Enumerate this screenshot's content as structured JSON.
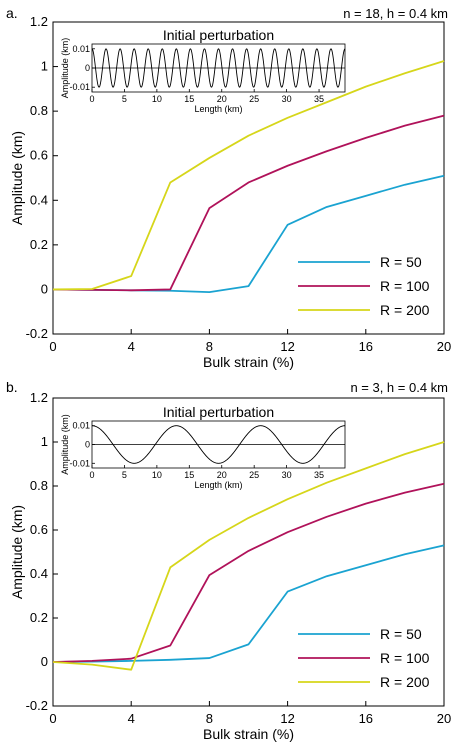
{
  "panels": [
    {
      "label": "a.",
      "params": "n = 18, h = 0.4 km",
      "chart_data": {
        "type": "line",
        "title": "",
        "xlabel": "Bulk strain (%)",
        "ylabel": "Amplitude (km)",
        "xlim": [
          0,
          20
        ],
        "ylim": [
          -0.2,
          1.2
        ],
        "xticks": [
          0,
          4,
          8,
          12,
          16,
          20
        ],
        "yticks": [
          -0.2,
          0,
          0.2,
          0.4,
          0.6,
          0.8,
          1,
          1.2
        ],
        "xtick_labels": [
          "0",
          "4",
          "8",
          "12",
          "16",
          "20"
        ],
        "ytick_labels": [
          "-0.2",
          "0",
          "0.2",
          "0.4",
          "0.6",
          "0.8",
          "1",
          "1.2"
        ],
        "grid": false,
        "legend": "bottom-right",
        "series": [
          {
            "name": "R = 50",
            "color": "#1aa3d1",
            "x": [
              0,
              2,
              4,
              6,
              8,
              10,
              12,
              14,
              16,
              18,
              20
            ],
            "y": [
              0,
              -0.002,
              -0.004,
              -0.006,
              -0.012,
              0.015,
              0.29,
              0.37,
              0.42,
              0.47,
              0.51
            ]
          },
          {
            "name": "R = 100",
            "color": "#b0125a",
            "x": [
              0,
              2,
              4,
              6,
              8,
              10,
              12,
              14,
              16,
              18,
              20
            ],
            "y": [
              0,
              -0.002,
              -0.004,
              0.0,
              0.365,
              0.48,
              0.555,
              0.62,
              0.68,
              0.735,
              0.78
            ]
          },
          {
            "name": "R = 200",
            "color": "#d6d61a",
            "x": [
              0,
              2,
              4,
              6,
              8,
              10,
              12,
              14,
              16,
              18,
              20
            ],
            "y": [
              0,
              0.002,
              0.06,
              0.48,
              0.59,
              0.69,
              0.77,
              0.84,
              0.91,
              0.97,
              1.025
            ]
          }
        ]
      },
      "inset": {
        "title": "Initial perturbation",
        "xlabel": "Length (km)",
        "ylabel": "Amplitude (km)",
        "xlim": [
          0,
          39
        ],
        "ylim": [
          -0.0125,
          0.0125
        ],
        "xticks": [
          0,
          5,
          10,
          15,
          20,
          25,
          30,
          35
        ],
        "xtick_labels": [
          "0",
          "5",
          "10",
          "15",
          "20",
          "25",
          "30",
          "35"
        ],
        "yticks": [
          0.01,
          0,
          -0.01
        ],
        "ytick_labels": [
          "0.01",
          "0",
          "-0.01"
        ],
        "wave": {
          "amplitude": 0.01,
          "cycles": 18
        }
      }
    },
    {
      "label": "b.",
      "params": "n = 3, h = 0.4 km",
      "chart_data": {
        "type": "line",
        "title": "",
        "xlabel": "Bulk strain (%)",
        "ylabel": "Amplitude (km)",
        "xlim": [
          0,
          20
        ],
        "ylim": [
          -0.2,
          1.2
        ],
        "xticks": [
          0,
          4,
          8,
          12,
          16,
          20
        ],
        "yticks": [
          -0.2,
          0,
          0.2,
          0.4,
          0.6,
          0.8,
          1,
          1.2
        ],
        "xtick_labels": [
          "0",
          "4",
          "8",
          "12",
          "16",
          "20"
        ],
        "ytick_labels": [
          "-0.2",
          "0",
          "0.2",
          "0.4",
          "0.6",
          "0.8",
          "1",
          "1.2"
        ],
        "grid": false,
        "legend": "bottom-right",
        "series": [
          {
            "name": "R = 50",
            "color": "#1aa3d1",
            "x": [
              0,
              2,
              4,
              6,
              8,
              10,
              12,
              14,
              16,
              18,
              20
            ],
            "y": [
              0,
              0.002,
              0.005,
              0.01,
              0.018,
              0.08,
              0.32,
              0.39,
              0.44,
              0.49,
              0.53
            ]
          },
          {
            "name": "R = 100",
            "color": "#b0125a",
            "x": [
              0,
              2,
              4,
              6,
              8,
              10,
              12,
              14,
              16,
              18,
              20
            ],
            "y": [
              0,
              0.005,
              0.015,
              0.075,
              0.395,
              0.505,
              0.59,
              0.66,
              0.72,
              0.77,
              0.81
            ]
          },
          {
            "name": "R = 200",
            "color": "#d6d61a",
            "x": [
              0,
              2,
              4,
              6,
              8,
              10,
              12,
              14,
              16,
              18,
              20
            ],
            "y": [
              0,
              -0.012,
              -0.035,
              0.43,
              0.555,
              0.655,
              0.74,
              0.815,
              0.88,
              0.945,
              1.0
            ]
          }
        ]
      },
      "inset": {
        "title": "Initial perturbation",
        "xlabel": "Length (km)",
        "ylabel": "Amplitude (km)",
        "xlim": [
          0,
          39
        ],
        "ylim": [
          -0.0125,
          0.0125
        ],
        "xticks": [
          0,
          5,
          10,
          15,
          20,
          25,
          30,
          35
        ],
        "xtick_labels": [
          "0",
          "5",
          "10",
          "15",
          "20",
          "25",
          "30",
          "35"
        ],
        "yticks": [
          0.01,
          0,
          -0.01
        ],
        "ytick_labels": [
          "0.01",
          "0",
          "-0.01"
        ],
        "wave": {
          "amplitude": 0.01,
          "cycles": 3
        }
      }
    }
  ]
}
